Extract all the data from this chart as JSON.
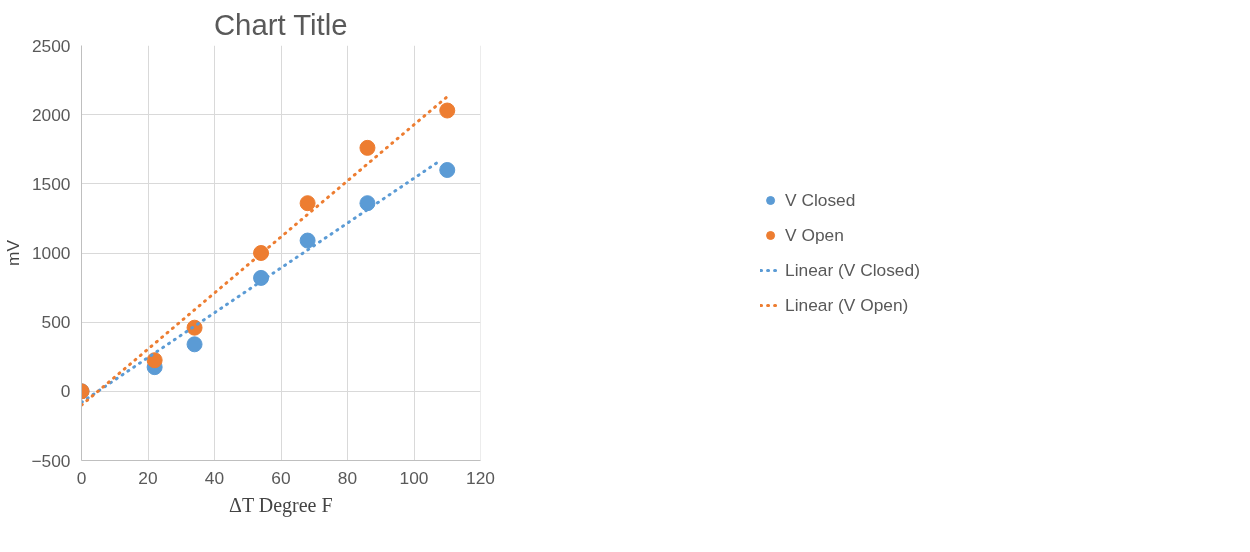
{
  "chart_data": {
    "type": "scatter",
    "title": "Chart Title",
    "xlabel": "ΔT Degree F",
    "ylabel": "mV",
    "xlim": [
      0,
      120
    ],
    "ylim": [
      -500,
      2500
    ],
    "xticks": [
      0,
      20,
      40,
      60,
      80,
      100,
      120
    ],
    "yticks": [
      -500,
      0,
      500,
      1000,
      1500,
      2000,
      2500
    ],
    "grid": true,
    "legend": "right",
    "series": [
      {
        "name": "V Closed",
        "marker": "circle",
        "color": "#5b9bd5",
        "x": [
          0,
          22,
          34,
          54,
          68,
          86,
          110
        ],
        "values": [
          0,
          175,
          340,
          820,
          1090,
          1360,
          1600
        ]
      },
      {
        "name": "V Open",
        "marker": "circle",
        "color": "#ed7d31",
        "x": [
          0,
          22,
          34,
          54,
          68,
          86,
          110
        ],
        "values": [
          0,
          225,
          460,
          1000,
          1360,
          1760,
          2030
        ]
      },
      {
        "name": "Linear (V Closed)",
        "type": "line",
        "line_style": "dotted",
        "color": "#5b9bd5",
        "x": [
          0,
          108
        ],
        "values": [
          -80,
          1670
        ]
      },
      {
        "name": "Linear (V Open)",
        "type": "line",
        "line_style": "dotted",
        "color": "#ed7d31",
        "x": [
          0,
          110
        ],
        "values": [
          -100,
          2130
        ]
      }
    ]
  }
}
